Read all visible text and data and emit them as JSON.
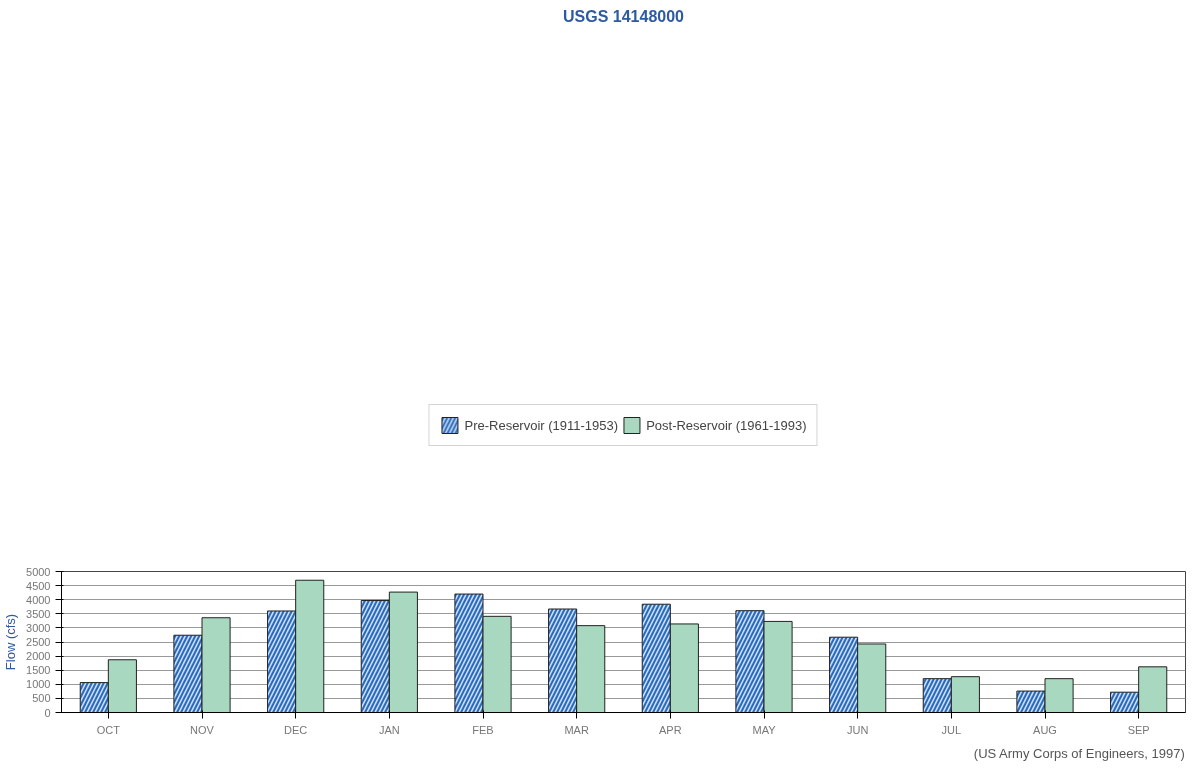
{
  "chart_data": {
    "type": "bar",
    "title": "USGS 14148000",
    "ylabel": "Flow (cfs)",
    "categories": [
      "OCT",
      "NOV",
      "DEC",
      "JAN",
      "FEB",
      "MAR",
      "APR",
      "MAY",
      "JUN",
      "JUL",
      "AUG",
      "SEP"
    ],
    "series": [
      {
        "name": "Pre-Reservoir (1911-1953)",
        "color": "#2e6bb8",
        "values": [
          1060,
          2740,
          3600,
          3970,
          4200,
          3670,
          3840,
          3610,
          2670,
          1200,
          760,
          720
        ]
      },
      {
        "name": "Post-Reservoir (1961-1993)",
        "color": "#a8d8c0",
        "values": [
          1870,
          3360,
          4690,
          4270,
          3410,
          3080,
          3140,
          3230,
          2430,
          1270,
          1200,
          1620
        ]
      }
    ],
    "ylim": [
      0,
      5000
    ],
    "yticks": [
      0,
      500,
      1000,
      1500,
      2000,
      2500,
      3000,
      3500,
      4000,
      4500,
      5000
    ],
    "grid": "y",
    "legend": "top",
    "annotations": [
      "(US Army Corps of Engineers, 1997)"
    ]
  }
}
